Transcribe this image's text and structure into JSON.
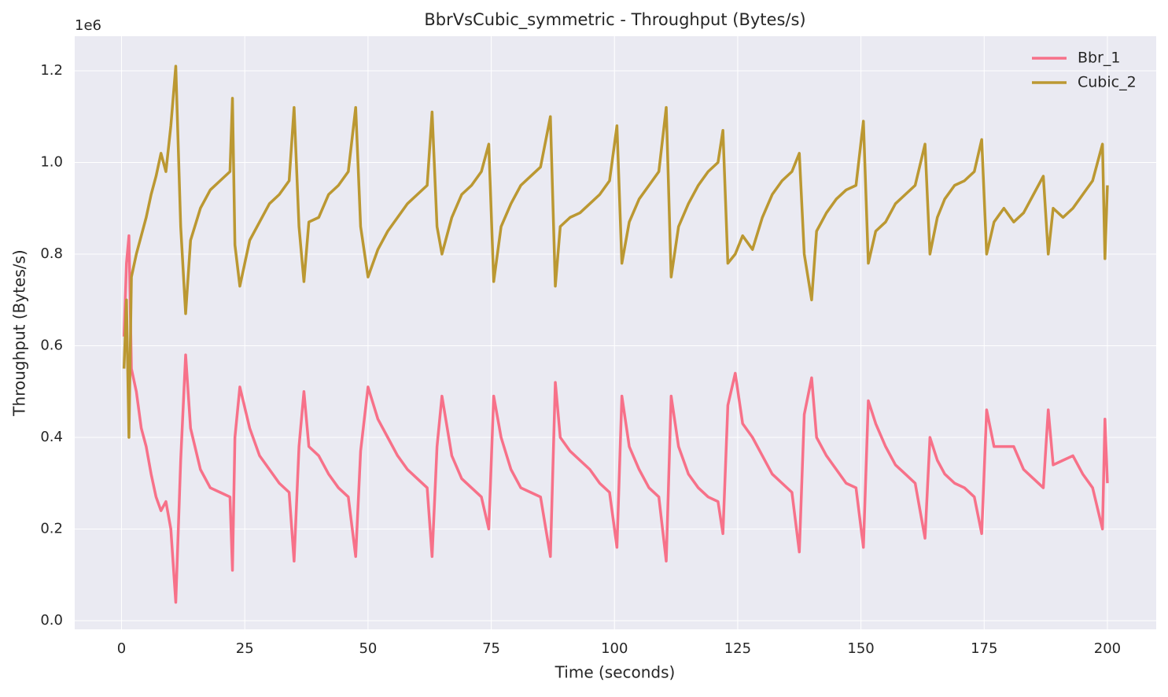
{
  "chart_data": {
    "type": "line",
    "title": "BbrVsCubic_symmetric - Throughput (Bytes/s)",
    "xlabel": "Time (seconds)",
    "ylabel": "Throughput (Bytes/s)",
    "y_offset_label": "1e6",
    "x": [
      0.5,
      1,
      1.5,
      2,
      3,
      4,
      5,
      6,
      7,
      8,
      9,
      10,
      11,
      12,
      13,
      14,
      16,
      18,
      20,
      22,
      22.5,
      23,
      24,
      26,
      28,
      30,
      32,
      34,
      35,
      36,
      37,
      38,
      40,
      42,
      44,
      46,
      47.5,
      48.5,
      50,
      52,
      54,
      56,
      58,
      60,
      62,
      63,
      64,
      65,
      67,
      69,
      71,
      73,
      74.5,
      75.5,
      77,
      79,
      81,
      83,
      85,
      87,
      88,
      89,
      91,
      93,
      95,
      97,
      99,
      100.5,
      101.5,
      103,
      105,
      107,
      109,
      110.5,
      111.5,
      113,
      115,
      117,
      119,
      121,
      122,
      123,
      124.5,
      126,
      128,
      130,
      132,
      134,
      136,
      137.5,
      138.5,
      140,
      141,
      143,
      145,
      147,
      149,
      150.5,
      151.5,
      153,
      155,
      157,
      159,
      161,
      163,
      164,
      165.5,
      167,
      169,
      171,
      173,
      174.5,
      175.5,
      177,
      179,
      181,
      183,
      185,
      187,
      188,
      189,
      191,
      193,
      195,
      197,
      199,
      199.5,
      200
    ],
    "series": [
      {
        "name": "Bbr_1",
        "color": "#f77189",
        "values": [
          620000,
          780000,
          840000,
          550000,
          500000,
          420000,
          380000,
          320000,
          270000,
          240000,
          260000,
          200000,
          40000,
          350000,
          580000,
          420000,
          330000,
          290000,
          280000,
          270000,
          110000,
          400000,
          510000,
          420000,
          360000,
          330000,
          300000,
          280000,
          130000,
          380000,
          500000,
          380000,
          360000,
          320000,
          290000,
          270000,
          140000,
          370000,
          510000,
          440000,
          400000,
          360000,
          330000,
          310000,
          290000,
          140000,
          380000,
          490000,
          360000,
          310000,
          290000,
          270000,
          200000,
          490000,
          400000,
          330000,
          290000,
          280000,
          270000,
          140000,
          520000,
          400000,
          370000,
          350000,
          330000,
          300000,
          280000,
          160000,
          490000,
          380000,
          330000,
          290000,
          270000,
          130000,
          490000,
          380000,
          320000,
          290000,
          270000,
          260000,
          190000,
          470000,
          540000,
          430000,
          400000,
          360000,
          320000,
          300000,
          280000,
          150000,
          450000,
          530000,
          400000,
          360000,
          330000,
          300000,
          290000,
          160000,
          480000,
          430000,
          380000,
          340000,
          320000,
          300000,
          180000,
          400000,
          350000,
          320000,
          300000,
          290000,
          270000,
          190000,
          460000,
          380000,
          380000,
          380000,
          330000,
          310000,
          290000,
          460000,
          340000,
          350000,
          360000,
          320000,
          290000,
          200000,
          440000,
          300000
        ]
      },
      {
        "name": "Cubic_2",
        "color": "#bb9832",
        "values": [
          550000,
          700000,
          400000,
          750000,
          800000,
          840000,
          880000,
          930000,
          970000,
          1020000,
          980000,
          1080000,
          1210000,
          860000,
          670000,
          830000,
          900000,
          940000,
          960000,
          980000,
          1140000,
          820000,
          730000,
          830000,
          870000,
          910000,
          930000,
          960000,
          1120000,
          860000,
          740000,
          870000,
          880000,
          930000,
          950000,
          980000,
          1120000,
          860000,
          750000,
          810000,
          850000,
          880000,
          910000,
          930000,
          950000,
          1110000,
          860000,
          800000,
          880000,
          930000,
          950000,
          980000,
          1040000,
          740000,
          860000,
          910000,
          950000,
          970000,
          990000,
          1100000,
          730000,
          860000,
          880000,
          890000,
          910000,
          930000,
          960000,
          1080000,
          780000,
          870000,
          920000,
          950000,
          980000,
          1120000,
          750000,
          860000,
          910000,
          950000,
          980000,
          1000000,
          1070000,
          780000,
          800000,
          840000,
          810000,
          880000,
          930000,
          960000,
          980000,
          1020000,
          800000,
          700000,
          850000,
          890000,
          920000,
          940000,
          950000,
          1090000,
          780000,
          850000,
          870000,
          910000,
          930000,
          950000,
          1040000,
          800000,
          880000,
          920000,
          950000,
          960000,
          980000,
          1050000,
          800000,
          870000,
          900000,
          870000,
          890000,
          930000,
          970000,
          800000,
          900000,
          880000,
          900000,
          930000,
          960000,
          1040000,
          790000,
          950000
        ]
      }
    ],
    "xlim": [
      -9.5,
      209.9
    ],
    "ylim": [
      -18900,
      1275500
    ],
    "xticks": [
      0,
      25,
      50,
      75,
      100,
      125,
      150,
      175,
      200
    ],
    "yticks": [
      {
        "value": 0,
        "label": "0.0"
      },
      {
        "value": 200000,
        "label": "0.2"
      },
      {
        "value": 400000,
        "label": "0.4"
      },
      {
        "value": 600000,
        "label": "0.6"
      },
      {
        "value": 800000,
        "label": "0.8"
      },
      {
        "value": 1000000,
        "label": "1.0"
      },
      {
        "value": 1200000,
        "label": "1.2"
      }
    ],
    "grid": true,
    "legend": "upper right"
  }
}
